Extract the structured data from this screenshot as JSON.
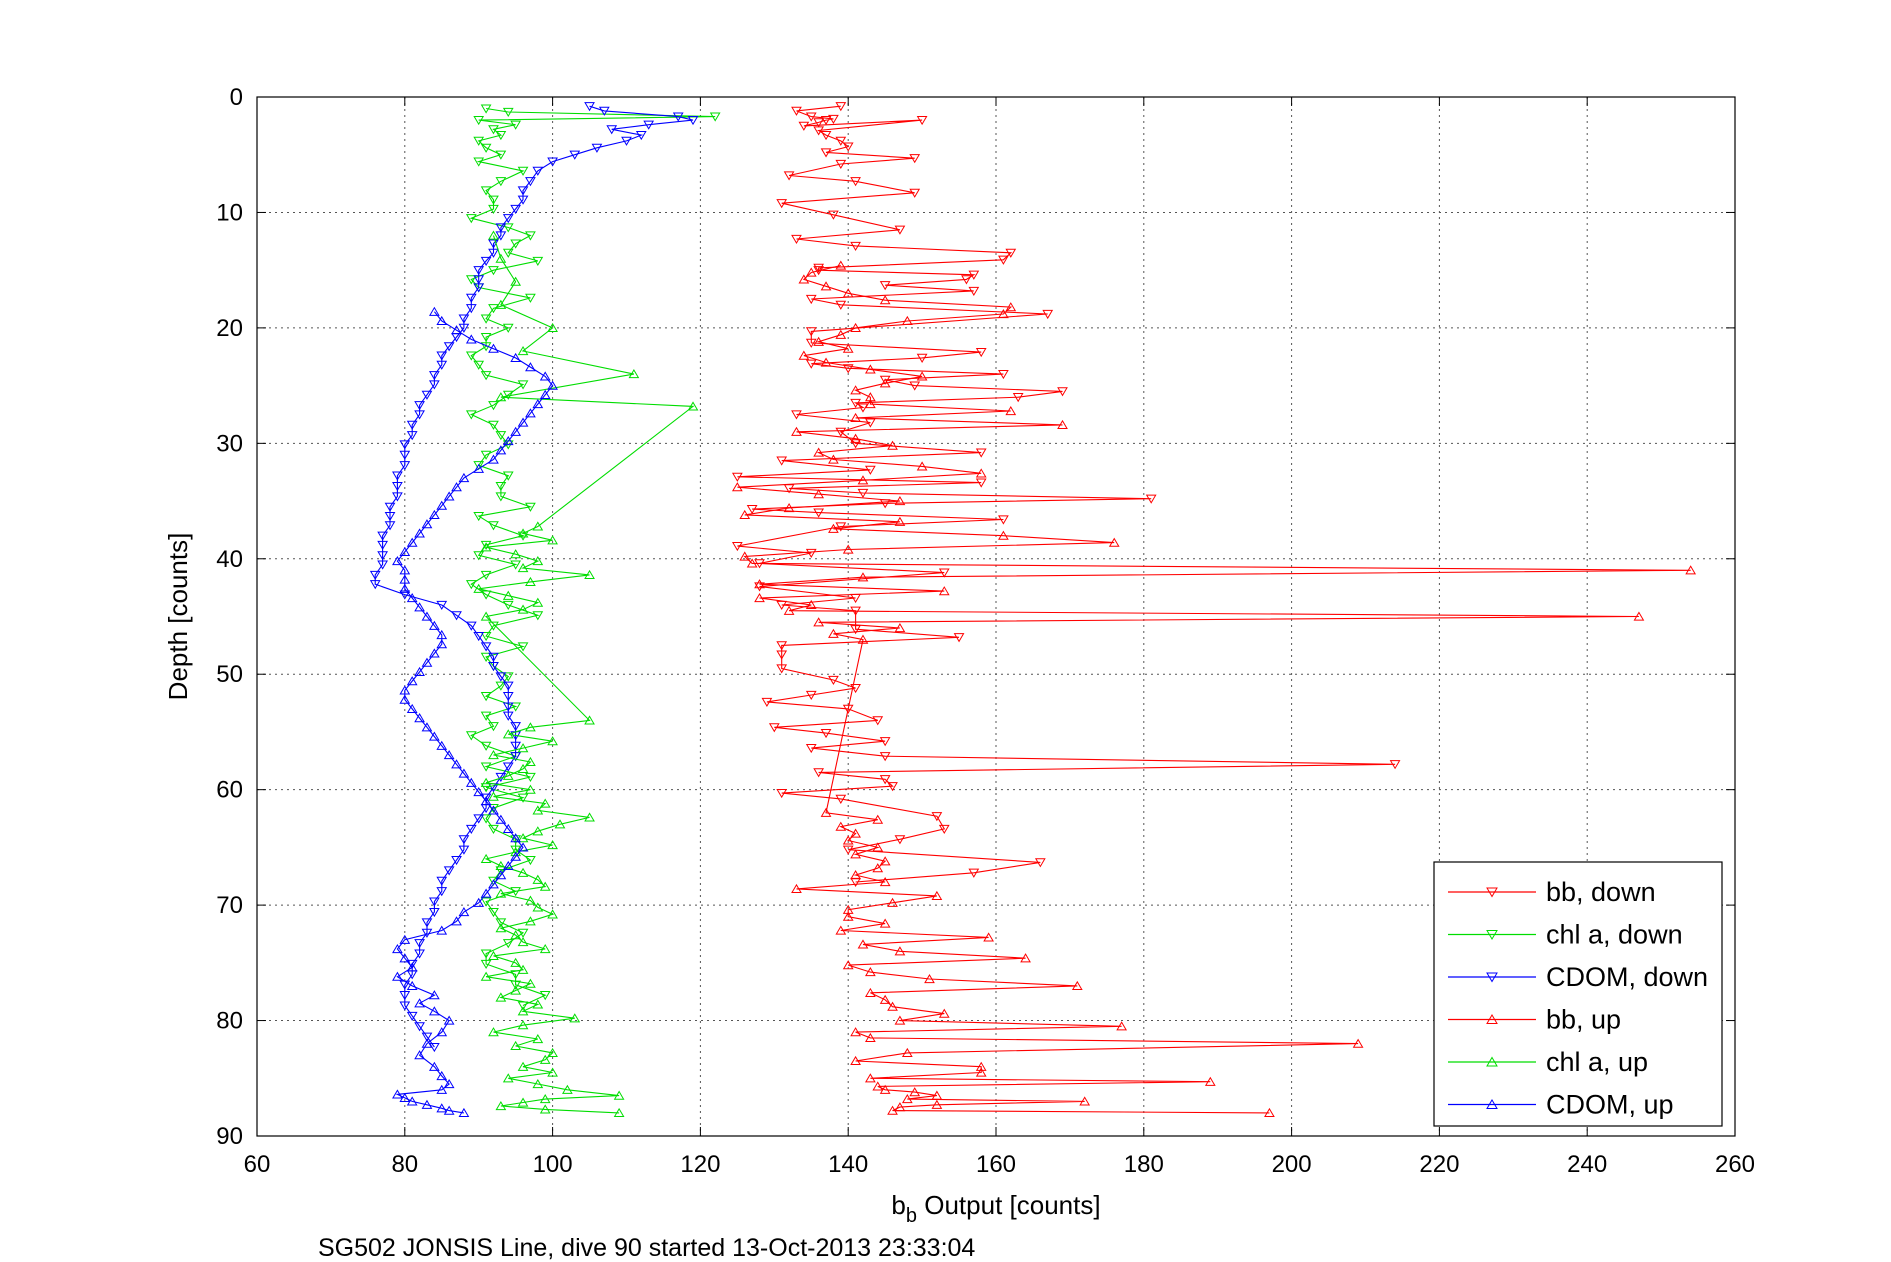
{
  "chart_data": {
    "type": "line",
    "caption": "SG502 JONSIS Line, dive 90 started 13-Oct-2013 23:33:04",
    "xlabel_main": "b",
    "xlabel_sub": "b",
    "xlabel_rest": " Output [counts]",
    "ylabel": "Depth [counts]",
    "xlim": [
      60,
      260
    ],
    "ylim": [
      0,
      90
    ],
    "y_reversed": true,
    "grid": true,
    "legend_position": "bottom-right",
    "x_ticks": [
      "60",
      "80",
      "100",
      "120",
      "140",
      "160",
      "180",
      "200",
      "220",
      "240",
      "260"
    ],
    "y_ticks": [
      "0",
      "10",
      "20",
      "30",
      "40",
      "50",
      "60",
      "70",
      "80",
      "90"
    ],
    "colors": {
      "red": "#ff0000",
      "green": "#00cc00",
      "blue": "#0000ff"
    },
    "series": [
      {
        "name": "bb, down",
        "color": "#ff0000",
        "marker": "triangle-down",
        "x": [
          139,
          133,
          135,
          138,
          137,
          136,
          134,
          150,
          136,
          137,
          139,
          140,
          137,
          149,
          139,
          132,
          141,
          149,
          131,
          138,
          147,
          133,
          141,
          162,
          161,
          136,
          136,
          157,
          156,
          145,
          157,
          135,
          139,
          167,
          135,
          135,
          158,
          150,
          135,
          140,
          161,
          145,
          149,
          169,
          163,
          141,
          142,
          133,
          143,
          139,
          141,
          158,
          131,
          143,
          125,
          158,
          132,
          142,
          181,
          145,
          127,
          136,
          161,
          139,
          125,
          135,
          128,
          153,
          128,
          141,
          131,
          141,
          141,
          155,
          131,
          131,
          131,
          138,
          141,
          135,
          129,
          140,
          144,
          130,
          137,
          145,
          135,
          145,
          214,
          136,
          145,
          146,
          131,
          139,
          152,
          153,
          147,
          140,
          166,
          157,
          141
        ],
        "y": [
          0.8,
          1.2,
          1.7,
          1.9,
          2.0,
          2.2,
          2.5,
          2.0,
          2.9,
          3.3,
          3.8,
          4.3,
          4.8,
          5.3,
          5.8,
          6.8,
          7.3,
          8.3,
          9.2,
          10.2,
          11.5,
          12.3,
          12.9,
          13.5,
          14.1,
          14.8,
          15.0,
          15.4,
          15.8,
          16.3,
          16.8,
          17.5,
          18.0,
          18.8,
          20.3,
          21.3,
          22.1,
          22.6,
          23.1,
          23.5,
          24.0,
          24.5,
          25.0,
          25.5,
          26.0,
          26.5,
          26.9,
          27.5,
          28.2,
          29.0,
          30.0,
          30.8,
          31.5,
          32.3,
          32.9,
          33.4,
          33.9,
          34.3,
          34.8,
          35.2,
          35.7,
          36.0,
          36.6,
          37.2,
          38.9,
          39.5,
          40.4,
          41.2,
          42.4,
          43.4,
          44.0,
          44.5,
          46.1,
          46.8,
          47.5,
          48.3,
          49.5,
          50.5,
          51.2,
          51.8,
          52.4,
          53.0,
          54.0,
          54.6,
          55.1,
          55.8,
          56.4,
          57.1,
          57.8,
          58.5,
          59.1,
          59.7,
          60.3,
          60.8,
          62.3,
          63.4,
          64.3,
          65.2,
          66.3,
          67.2,
          68.0
        ]
      },
      {
        "name": "chl a, down",
        "color": "#00dd00",
        "marker": "triangle-down",
        "x": [
          91,
          94,
          122,
          90,
          95,
          92,
          93,
          90,
          91,
          93,
          90,
          96,
          93,
          91,
          92,
          92,
          89,
          94,
          97,
          95,
          94,
          98,
          92,
          89,
          90,
          97,
          92,
          91,
          94,
          91,
          91,
          89,
          90,
          91,
          96,
          94,
          92,
          89,
          92,
          93,
          94,
          91,
          90,
          94,
          93,
          93,
          97,
          90,
          92,
          96,
          91,
          90,
          95,
          91,
          89,
          91,
          94,
          98,
          92,
          91,
          96,
          91,
          92,
          94,
          93,
          91,
          95,
          91,
          92,
          89,
          91,
          95,
          91,
          97,
          91,
          96,
          92,
          91,
          92,
          95,
          95,
          97,
          93,
          92,
          95,
          91,
          92,
          93,
          96,
          94,
          91,
          91,
          95,
          95,
          99,
          96
        ],
        "y": [
          1.0,
          1.3,
          1.7,
          2.0,
          2.4,
          2.8,
          3.3,
          3.8,
          4.4,
          5.0,
          5.6,
          6.4,
          7.3,
          8.1,
          8.9,
          9.7,
          10.5,
          11.3,
          12.0,
          12.7,
          13.5,
          14.2,
          15.0,
          15.8,
          16.5,
          17.4,
          18.3,
          19.2,
          20.0,
          20.8,
          21.6,
          22.4,
          23.2,
          24.1,
          24.9,
          25.8,
          26.7,
          27.5,
          28.4,
          29.3,
          30.1,
          31.0,
          31.9,
          32.8,
          33.7,
          34.6,
          35.5,
          36.3,
          37.1,
          38.0,
          38.8,
          39.7,
          40.5,
          41.4,
          42.2,
          43.1,
          44.0,
          44.9,
          45.8,
          46.7,
          47.6,
          48.5,
          49.3,
          50.2,
          51.0,
          51.9,
          52.8,
          53.6,
          54.5,
          55.3,
          56.2,
          57.1,
          58.0,
          58.9,
          59.8,
          60.7,
          61.6,
          62.5,
          63.4,
          64.3,
          65.2,
          66.1,
          67.0,
          67.9,
          68.8,
          69.7,
          70.6,
          71.5,
          72.4,
          73.3,
          74.2,
          75.1,
          76.0,
          76.9,
          77.8,
          78.7
        ]
      },
      {
        "name": "CDOM, down",
        "color": "#0000ff",
        "marker": "triangle-down",
        "x": [
          105,
          107,
          117,
          119,
          113,
          108,
          112,
          110,
          106,
          103,
          100,
          98,
          97,
          96,
          96,
          95,
          94,
          93,
          93,
          92,
          92,
          91,
          90,
          90,
          90,
          89,
          89,
          88,
          88,
          87,
          86,
          85,
          85,
          84,
          84,
          83,
          82,
          82,
          81,
          81,
          80,
          80,
          80,
          79,
          79,
          79,
          78,
          78,
          78,
          77,
          77,
          77,
          77,
          76,
          76,
          80,
          85,
          87,
          89,
          90,
          91,
          92,
          92,
          93,
          94,
          94,
          94,
          94,
          95,
          95,
          95,
          95,
          94,
          93,
          92,
          91,
          91,
          90,
          89,
          88,
          88,
          87,
          86,
          85,
          85,
          84,
          84,
          83,
          83,
          82,
          82,
          81,
          81,
          80,
          80,
          80,
          81,
          82,
          83,
          84
        ],
        "y": [
          0.8,
          1.2,
          1.7,
          2.0,
          2.4,
          2.8,
          3.3,
          3.8,
          4.4,
          5.0,
          5.6,
          6.4,
          7.3,
          8.1,
          8.9,
          9.7,
          10.5,
          11.3,
          12.0,
          12.7,
          13.5,
          14.2,
          15.0,
          15.8,
          16.5,
          17.4,
          18.3,
          19.2,
          20.0,
          20.8,
          21.6,
          22.4,
          23.2,
          24.1,
          24.9,
          25.8,
          26.7,
          27.5,
          28.4,
          29.3,
          30.1,
          31.0,
          31.9,
          32.8,
          33.7,
          34.6,
          35.5,
          36.3,
          37.1,
          38.0,
          38.8,
          39.7,
          40.5,
          41.4,
          42.2,
          43.1,
          44.0,
          44.9,
          45.8,
          46.7,
          47.6,
          48.5,
          49.3,
          50.2,
          51.0,
          51.9,
          52.8,
          53.6,
          54.5,
          55.3,
          56.2,
          57.1,
          58.0,
          58.9,
          59.8,
          60.7,
          61.6,
          62.5,
          63.4,
          64.3,
          65.2,
          66.1,
          67.0,
          67.9,
          68.8,
          69.7,
          70.6,
          71.5,
          72.4,
          73.3,
          74.2,
          75.1,
          76.0,
          76.9,
          77.8,
          78.7,
          79.6,
          80.5,
          81.4,
          82.3
        ]
      },
      {
        "name": "bb, up",
        "color": "#ff0000",
        "marker": "triangle-up",
        "x": [
          197,
          146,
          147,
          152,
          172,
          148,
          152,
          149,
          145,
          144,
          189,
          143,
          158,
          158,
          141,
          148,
          209,
          143,
          141,
          177,
          147,
          153,
          146,
          145,
          143,
          171,
          151,
          143,
          140,
          164,
          147,
          142,
          159,
          139,
          145,
          140,
          140,
          146,
          152,
          133,
          145,
          141,
          144,
          145,
          141,
          144,
          140,
          141,
          139,
          144,
          137,
          142,
          138,
          147,
          136,
          247,
          132,
          135,
          128,
          153,
          128,
          142,
          254,
          127,
          126,
          140,
          176,
          161,
          138,
          147,
          126,
          132,
          147,
          136,
          125,
          142,
          158,
          150,
          138,
          136,
          146,
          141,
          133,
          169,
          141,
          162,
          143,
          143,
          141,
          145,
          150,
          143,
          137,
          134,
          140,
          136,
          139,
          141,
          148,
          161,
          162,
          145,
          140,
          137,
          134,
          135,
          139
        ],
        "y": [
          88.0,
          87.8,
          87.5,
          87.3,
          87.0,
          86.8,
          86.5,
          86.2,
          86.0,
          85.7,
          85.3,
          85.0,
          84.5,
          84.0,
          83.5,
          82.8,
          82.0,
          81.5,
          81.0,
          80.5,
          80.0,
          79.4,
          78.8,
          78.2,
          77.6,
          77.0,
          76.4,
          75.8,
          75.2,
          74.6,
          74.0,
          73.4,
          72.8,
          72.2,
          71.6,
          71.0,
          70.4,
          69.8,
          69.2,
          68.6,
          68.0,
          67.4,
          66.8,
          66.2,
          65.6,
          65.0,
          64.4,
          63.8,
          63.2,
          62.6,
          62.0,
          47.0,
          46.5,
          46.0,
          45.5,
          45.0,
          44.5,
          44.0,
          43.4,
          42.8,
          42.2,
          41.6,
          41.0,
          40.4,
          39.8,
          39.2,
          38.6,
          38.0,
          37.4,
          36.8,
          36.2,
          35.6,
          35.0,
          34.4,
          33.8,
          33.2,
          32.6,
          32.0,
          31.4,
          30.8,
          30.2,
          29.6,
          29.0,
          28.4,
          27.8,
          27.2,
          26.6,
          26.0,
          25.4,
          24.8,
          24.2,
          23.6,
          23.0,
          22.4,
          21.8,
          21.2,
          20.6,
          20.0,
          19.4,
          18.8,
          18.2,
          17.6,
          17.0,
          16.4,
          15.8,
          15.2,
          14.6
        ]
      },
      {
        "name": "chl a, up",
        "color": "#00dd00",
        "marker": "triangle-up",
        "x": [
          109,
          99,
          93,
          96,
          99,
          109,
          102,
          98,
          94,
          100,
          96,
          99,
          100,
          95,
          98,
          92,
          96,
          103,
          96,
          98,
          93,
          95,
          97,
          91,
          96,
          95,
          92,
          99,
          96,
          95,
          93,
          97,
          100,
          98,
          97,
          93,
          99,
          98,
          96,
          93,
          91,
          95,
          100,
          96,
          98,
          101,
          105,
          98,
          99,
          92,
          97,
          91,
          94,
          96,
          97,
          92,
          96,
          100,
          94,
          97,
          105,
          91,
          96,
          98,
          94,
          90,
          97,
          105,
          96,
          98,
          95,
          91,
          100,
          96,
          98,
          119,
          93,
          111,
          96,
          100,
          93,
          95,
          93,
          92
        ],
        "y": [
          88.0,
          87.7,
          87.4,
          87.1,
          86.8,
          86.5,
          86.0,
          85.5,
          85.0,
          84.5,
          84.0,
          83.4,
          82.8,
          82.2,
          81.6,
          81.0,
          80.4,
          79.8,
          79.2,
          78.6,
          78.0,
          77.4,
          76.8,
          76.2,
          75.6,
          75.0,
          74.4,
          73.8,
          73.2,
          72.6,
          72.0,
          71.4,
          70.8,
          70.2,
          69.6,
          69.0,
          68.4,
          67.8,
          67.2,
          66.6,
          66.0,
          65.4,
          64.8,
          64.2,
          63.6,
          63.0,
          62.4,
          61.8,
          61.2,
          60.6,
          60.0,
          59.4,
          58.8,
          58.2,
          57.6,
          57.0,
          56.4,
          55.8,
          55.2,
          54.6,
          54.0,
          45.0,
          44.4,
          43.8,
          43.2,
          42.6,
          42.0,
          41.4,
          40.8,
          40.2,
          39.6,
          39.0,
          38.4,
          37.8,
          37.2,
          26.8,
          26.0,
          24.0,
          22.0,
          20.0,
          18.0,
          16.0,
          14.0,
          12.0
        ]
      },
      {
        "name": "CDOM, up",
        "color": "#0000ff",
        "marker": "triangle-up",
        "x": [
          88,
          86,
          85,
          83,
          81,
          80,
          79,
          85,
          86,
          85,
          84,
          82,
          83,
          85,
          86,
          84,
          82,
          84,
          81,
          79,
          81,
          80,
          79,
          80,
          85,
          87,
          88,
          90,
          91,
          92,
          93,
          94,
          95,
          96,
          95,
          94,
          93,
          92,
          91,
          90,
          89,
          88,
          87,
          86,
          85,
          84,
          83,
          82,
          81,
          80,
          80,
          81,
          82,
          83,
          84,
          85,
          85,
          84,
          83,
          82,
          81,
          80,
          80,
          80,
          79,
          80,
          81,
          82,
          83,
          84,
          85,
          86,
          87,
          88,
          90,
          92,
          93,
          94,
          95,
          96,
          97,
          98,
          99,
          100,
          99,
          97,
          95,
          92,
          89,
          87,
          85,
          84
        ],
        "y": [
          88.0,
          87.8,
          87.6,
          87.3,
          87.0,
          86.7,
          86.4,
          86.0,
          85.5,
          84.8,
          84.0,
          83.0,
          82.0,
          81.0,
          80.0,
          79.2,
          78.5,
          77.8,
          77.0,
          76.2,
          75.4,
          74.6,
          73.8,
          73.0,
          72.2,
          71.4,
          70.6,
          69.8,
          69.0,
          68.2,
          67.4,
          66.6,
          65.8,
          65.0,
          64.2,
          63.4,
          62.6,
          61.8,
          61.0,
          60.2,
          59.4,
          58.6,
          57.8,
          57.0,
          56.2,
          55.4,
          54.6,
          53.8,
          53.0,
          52.2,
          51.4,
          50.6,
          49.8,
          49.0,
          48.2,
          47.4,
          46.6,
          45.8,
          45.0,
          44.2,
          43.4,
          42.6,
          41.8,
          41.0,
          40.2,
          39.4,
          38.6,
          37.8,
          37.0,
          36.2,
          35.4,
          34.6,
          33.8,
          33.0,
          32.2,
          31.4,
          30.6,
          29.8,
          29.0,
          28.2,
          27.4,
          26.6,
          25.8,
          25.0,
          24.2,
          23.4,
          22.6,
          21.8,
          21.0,
          20.2,
          19.4,
          18.6
        ]
      }
    ]
  }
}
